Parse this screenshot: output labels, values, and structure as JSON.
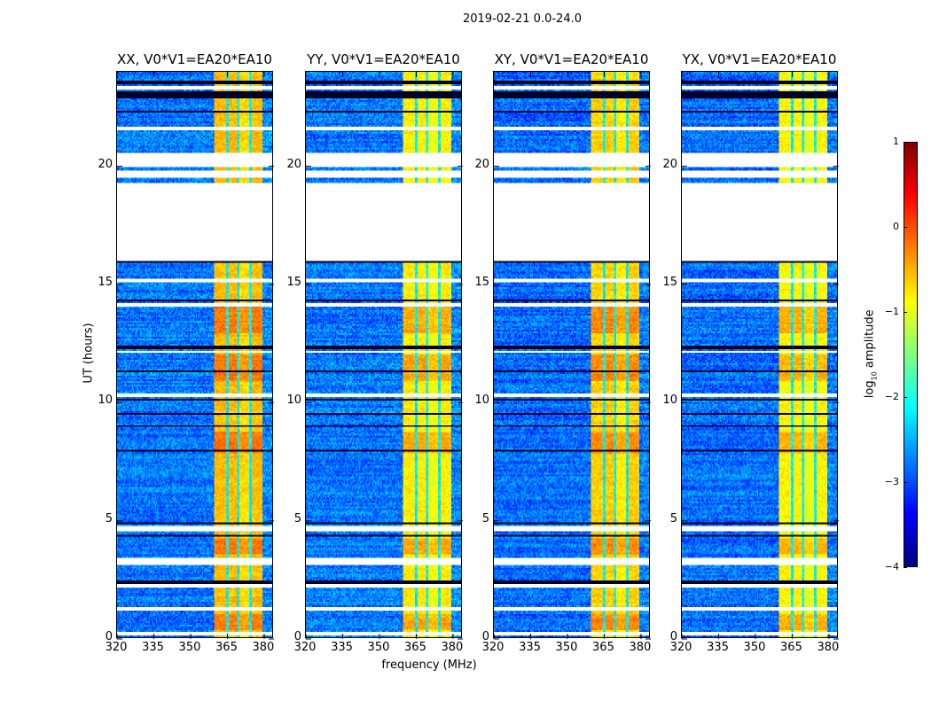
{
  "chart_data": [
    {
      "type": "heatmap",
      "suptitle": "2019-02-21 0.0-24.0",
      "xlabel": "frequency (MHz)",
      "ylabel": "UT (hours)",
      "xlim": [
        320,
        384
      ],
      "ylim": [
        0,
        24
      ],
      "xticks": [
        "320",
        "335",
        "350",
        "365",
        "380"
      ],
      "xtick_values": [
        320,
        335,
        350,
        365,
        380
      ],
      "yticks": [
        "0",
        "5",
        "10",
        "15",
        "20"
      ],
      "ytick_values": [
        0,
        5,
        10,
        15,
        20
      ],
      "colormap": "jet",
      "panels": [
        {
          "title": "XX, V0*V1=EA20*EA10",
          "background_level": -2.8,
          "band_level": -0.55
        },
        {
          "title": "YY, V0*V1=EA20*EA10",
          "background_level": -2.8,
          "band_level": -0.8
        },
        {
          "title": "XY, V0*V1=EA20*EA10",
          "background_level": -2.85,
          "band_level": -0.65
        },
        {
          "title": "YX, V0*V1=EA20*EA10",
          "background_level": -2.85,
          "band_level": -0.85
        }
      ],
      "rfi_band_mhz": [
        360,
        380
      ],
      "rfi_band_gaps_mhz": [
        365.4,
        370.2,
        375.2
      ],
      "enhanced_ut_ranges": [
        [
          12.9,
          14.0
        ],
        [
          10.9,
          12.0
        ],
        [
          7.8,
          8.7
        ],
        [
          3.5,
          4.2
        ],
        [
          0.3,
          1.0
        ]
      ],
      "flagged_ut_ranges": [
        [
          23.25,
          23.4
        ],
        [
          21.55,
          21.7
        ],
        [
          19.96,
          20.56
        ],
        [
          19.5,
          19.8
        ],
        [
          16.0,
          19.3
        ],
        [
          15.1,
          15.2
        ],
        [
          14.0,
          14.2
        ],
        [
          12.05,
          12.15
        ],
        [
          10.17,
          10.35
        ],
        [
          4.5,
          4.7
        ],
        [
          3.1,
          3.35
        ],
        [
          2.1,
          2.25
        ],
        [
          1.1,
          1.27
        ],
        [
          0.05,
          0.2
        ]
      ],
      "dark_ut_rows": [
        23.55,
        23.1,
        22.95,
        22.3,
        16.0,
        15.95,
        14.3,
        12.3,
        11.3,
        10.1,
        9.5,
        8.95,
        7.9,
        4.85,
        4.3,
        2.35,
        2.28
      ],
      "colorbar": {
        "label": "log",
        "label_sub": "10",
        "label_rest": " amplitude",
        "range": [
          -4,
          1
        ],
        "ticks": [
          "1",
          "0",
          "−1",
          "−2",
          "−3",
          "−4"
        ],
        "tick_values": [
          1,
          0,
          -1,
          -2,
          -3,
          -4
        ]
      }
    }
  ]
}
